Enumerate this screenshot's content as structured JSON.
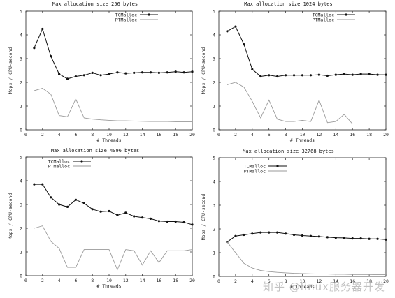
{
  "colors": {
    "tcmalloc": "#111111",
    "ptmalloc": "#9a9a9a",
    "axes": "#222222"
  },
  "chart_data": [
    {
      "type": "line",
      "title": "Max allocation size 256 bytes",
      "xlabel": "# Threads",
      "ylabel": "Mops / CPU-second",
      "xlim": [
        0,
        20
      ],
      "ylim": [
        0,
        5
      ],
      "xticks": [
        "0",
        "2",
        "4",
        "6",
        "8",
        "10",
        "12",
        "14",
        "16",
        "18",
        "20"
      ],
      "yticks": [
        "0",
        "1",
        "2",
        "3",
        "4",
        "5"
      ],
      "legend_position": "top-right",
      "x": [
        1,
        2,
        3,
        4,
        5,
        6,
        7,
        8,
        9,
        10,
        11,
        12,
        13,
        14,
        15,
        16,
        17,
        18,
        19,
        20
      ],
      "series": [
        {
          "name": "TCMalloc",
          "marker": true,
          "values": [
            3.45,
            4.25,
            3.1,
            2.35,
            2.15,
            2.25,
            2.3,
            2.4,
            2.3,
            2.35,
            2.42,
            2.38,
            2.4,
            2.42,
            2.42,
            2.4,
            2.42,
            2.45,
            2.42,
            2.45
          ]
        },
        {
          "name": "PTMalloc",
          "marker": false,
          "values": [
            1.65,
            1.75,
            1.5,
            0.6,
            0.55,
            1.3,
            0.5,
            0.45,
            0.42,
            0.4,
            0.38,
            0.38,
            0.37,
            0.36,
            0.35,
            0.35,
            0.35,
            0.34,
            0.34,
            0.34
          ]
        }
      ]
    },
    {
      "type": "line",
      "title": "Max allocation size 1024 bytes",
      "xlabel": "# Threads",
      "ylabel": "Mops / CPU-second",
      "xlim": [
        0,
        20
      ],
      "ylim": [
        0,
        5
      ],
      "xticks": [
        "0",
        "2",
        "4",
        "6",
        "8",
        "10",
        "12",
        "14",
        "16",
        "18",
        "20"
      ],
      "yticks": [
        "0",
        "1",
        "2",
        "3",
        "4",
        "5"
      ],
      "legend_position": "top-right",
      "x": [
        1,
        2,
        3,
        4,
        5,
        6,
        7,
        8,
        9,
        10,
        11,
        12,
        13,
        14,
        15,
        16,
        17,
        18,
        19,
        20
      ],
      "series": [
        {
          "name": "TCMalloc",
          "marker": true,
          "values": [
            4.15,
            4.35,
            3.6,
            2.55,
            2.25,
            2.3,
            2.25,
            2.3,
            2.3,
            2.3,
            2.3,
            2.32,
            2.28,
            2.32,
            2.35,
            2.32,
            2.35,
            2.35,
            2.32,
            2.32
          ]
        },
        {
          "name": "PTMalloc",
          "marker": false,
          "values": [
            1.9,
            2.0,
            1.8,
            1.2,
            0.5,
            1.25,
            0.45,
            0.35,
            0.35,
            0.4,
            0.35,
            1.25,
            0.3,
            0.35,
            0.65,
            0.25,
            0.25,
            0.25,
            0.25,
            0.25
          ]
        }
      ]
    },
    {
      "type": "line",
      "title": "Max allocation size 4096 bytes",
      "xlabel": "# Threads",
      "ylabel": "Mops / CPU-second",
      "xlim": [
        0,
        20
      ],
      "ylim": [
        0,
        5
      ],
      "xticks": [
        "0",
        "2",
        "4",
        "6",
        "8",
        "10",
        "12",
        "14",
        "16",
        "18",
        "20"
      ],
      "yticks": [
        "0",
        "1",
        "2",
        "3",
        "4",
        "5"
      ],
      "legend_position": "top-left",
      "x": [
        1,
        2,
        3,
        4,
        5,
        6,
        7,
        8,
        9,
        10,
        11,
        12,
        13,
        14,
        15,
        16,
        17,
        18,
        19,
        20
      ],
      "series": [
        {
          "name": "TCMalloc",
          "marker": true,
          "values": [
            3.85,
            3.85,
            3.3,
            3.0,
            2.9,
            3.2,
            3.05,
            2.8,
            2.7,
            2.72,
            2.55,
            2.65,
            2.5,
            2.45,
            2.4,
            2.3,
            2.28,
            2.28,
            2.25,
            2.15
          ]
        },
        {
          "name": "PTMalloc",
          "marker": false,
          "values": [
            2.0,
            2.1,
            1.45,
            1.15,
            0.35,
            0.35,
            1.1,
            1.1,
            1.1,
            1.1,
            0.25,
            1.1,
            1.05,
            0.45,
            1.05,
            0.55,
            1.05,
            1.05,
            1.05,
            1.1
          ]
        }
      ]
    },
    {
      "type": "line",
      "title": "Max allocation size 32768 bytes",
      "xlabel": "# Threads",
      "ylabel": "Mops / CPU-second",
      "xlim": [
        0,
        20
      ],
      "ylim": [
        0,
        5
      ],
      "xticks": [
        "0",
        "2",
        "4",
        "6",
        "8",
        "10",
        "12",
        "14",
        "16",
        "18",
        "20"
      ],
      "yticks": [
        "0",
        "1",
        "2",
        "3",
        "4",
        "5"
      ],
      "legend_position": "top-left",
      "x": [
        1,
        2,
        3,
        4,
        5,
        6,
        7,
        8,
        9,
        10,
        11,
        12,
        13,
        14,
        15,
        16,
        17,
        18,
        19,
        20
      ],
      "series": [
        {
          "name": "TCMalloc",
          "marker": true,
          "values": [
            1.45,
            1.7,
            1.75,
            1.8,
            1.85,
            1.85,
            1.85,
            1.8,
            1.75,
            1.72,
            1.7,
            1.68,
            1.65,
            1.63,
            1.62,
            1.6,
            1.6,
            1.58,
            1.58,
            1.55
          ]
        },
        {
          "name": "PTMalloc",
          "marker": false,
          "values": [
            1.45,
            1.0,
            0.55,
            0.35,
            0.25,
            0.2,
            0.17,
            0.15,
            0.13,
            0.12,
            0.11,
            0.1,
            0.1,
            0.09,
            0.09,
            0.08,
            0.08,
            0.08,
            0.07,
            0.07
          ]
        }
      ]
    }
  ],
  "watermark": "知乎 @linux服务器开发"
}
